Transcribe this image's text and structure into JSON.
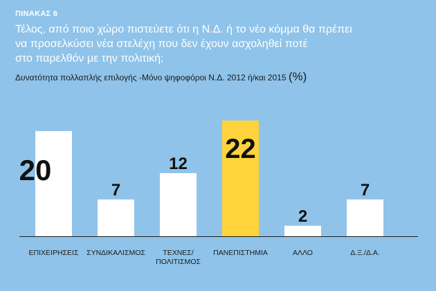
{
  "header": {
    "table_label": "ΠΙΝΑΚΑΣ 6",
    "title_lines": [
      "Τέλος, από ποιο χώρο πιστεύετε ότι η Ν.Δ. ή το νέο κόμμα θα πρέπει",
      "να προσελκύσει νέα στελέχη που δεν έχουν ασχοληθεί ποτέ",
      "στο παρελθόν με την πολιτική;"
    ],
    "subtitle": "Δυνατότητα πολλαπλής επιλογής -Μόνο ψηφοφόροι Ν.Δ. 2012 ή/και 2015",
    "subtitle_unit": "(%)"
  },
  "colors": {
    "background": "#8fc3e9",
    "bar": "#ffffff",
    "highlight_bar": "#ffd43b",
    "value_text": "#111111"
  },
  "chart_data": {
    "type": "bar",
    "categories": [
      [
        "ΕΠΙΧΕΙΡΗΣΕΙΣ"
      ],
      [
        "ΣΥΝΔΙΚΑΛΙΣΜΟΣ"
      ],
      [
        "ΤΕΧΝΕΣ/",
        "ΠΟΛΙΤΙΣΜΟΣ"
      ],
      [
        "ΠΑΝΕΠΙΣΤΗΜΙΑ"
      ],
      [
        "ΑΛΛΟ"
      ],
      [
        "Δ.Ξ./Δ.Α."
      ]
    ],
    "values": [
      20,
      7,
      12,
      22,
      2,
      7
    ],
    "value_labels": [
      "20",
      "7",
      "12",
      "22",
      "2",
      "7"
    ],
    "highlight_index": 3,
    "ylim": [
      0,
      22
    ],
    "grid": false,
    "legend": "none"
  }
}
